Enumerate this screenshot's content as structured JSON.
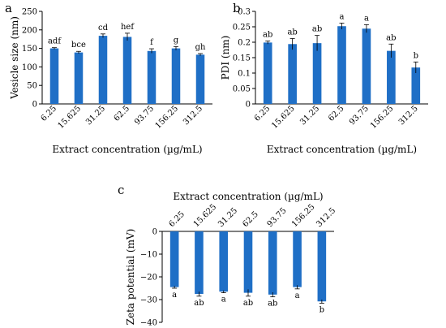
{
  "chart_data": [
    {
      "panel": "a",
      "type": "bar",
      "categories": [
        "6.25",
        "15.625",
        "31.25",
        "62.5",
        "93.75",
        "156.25",
        "312.5"
      ],
      "values": [
        150,
        139,
        184,
        181,
        143,
        150,
        133
      ],
      "errors": [
        2,
        3,
        5,
        10,
        6,
        5,
        3
      ],
      "labels": [
        "adf",
        "bce",
        "cd",
        "hef",
        "f",
        "g",
        "gh"
      ],
      "xlabel": "Extract concentration (µg/mL)",
      "ylabel": "Vesicle size (nm)",
      "ylim": [
        0,
        250
      ],
      "yticks": [
        "0",
        "50",
        "100",
        "150",
        "200",
        "250"
      ],
      "grid": false,
      "color": "#1f6fc6"
    },
    {
      "panel": "b",
      "type": "bar",
      "categories": [
        "6.25",
        "15.625",
        "31.25",
        "62.5",
        "93.75",
        "156.25",
        "312.5"
      ],
      "values": [
        0.199,
        0.194,
        0.197,
        0.252,
        0.244,
        0.172,
        0.118
      ],
      "errors": [
        0.005,
        0.018,
        0.025,
        0.01,
        0.013,
        0.022,
        0.018
      ],
      "labels": [
        "ab",
        "ab",
        "ab",
        "a",
        "a",
        "ab",
        "b"
      ],
      "xlabel": "Extract concentration (µg/mL)",
      "ylabel": "PDI (nm)",
      "ylim": [
        0,
        0.3
      ],
      "yticks": [
        "0",
        "0.05",
        "0.1",
        "0.15",
        "0.2",
        "0.25",
        "0.3"
      ],
      "grid": false,
      "color": "#1f6fc6"
    },
    {
      "panel": "c",
      "type": "bar",
      "categories": [
        "6.25",
        "15.625",
        "31.25",
        "62.5",
        "93.75",
        "156.25",
        "312.5"
      ],
      "values": [
        -24.5,
        -27.5,
        -26.5,
        -27,
        -27.8,
        -24.5,
        -30.8
      ],
      "errors": [
        0.5,
        1.0,
        0.5,
        1.5,
        1.0,
        0.8,
        0.8
      ],
      "labels": [
        "a",
        "ab",
        "a",
        "ab",
        "ab",
        "a",
        "b"
      ],
      "xlabel": "Extract concentration (µg/mL)",
      "ylabel": "Zeta potential (mV)",
      "ylim": [
        -40,
        0
      ],
      "yticks": [
        "0",
        "−10",
        "−20",
        "−30",
        "−40"
      ],
      "grid": false,
      "color": "#1f6fc6"
    }
  ]
}
